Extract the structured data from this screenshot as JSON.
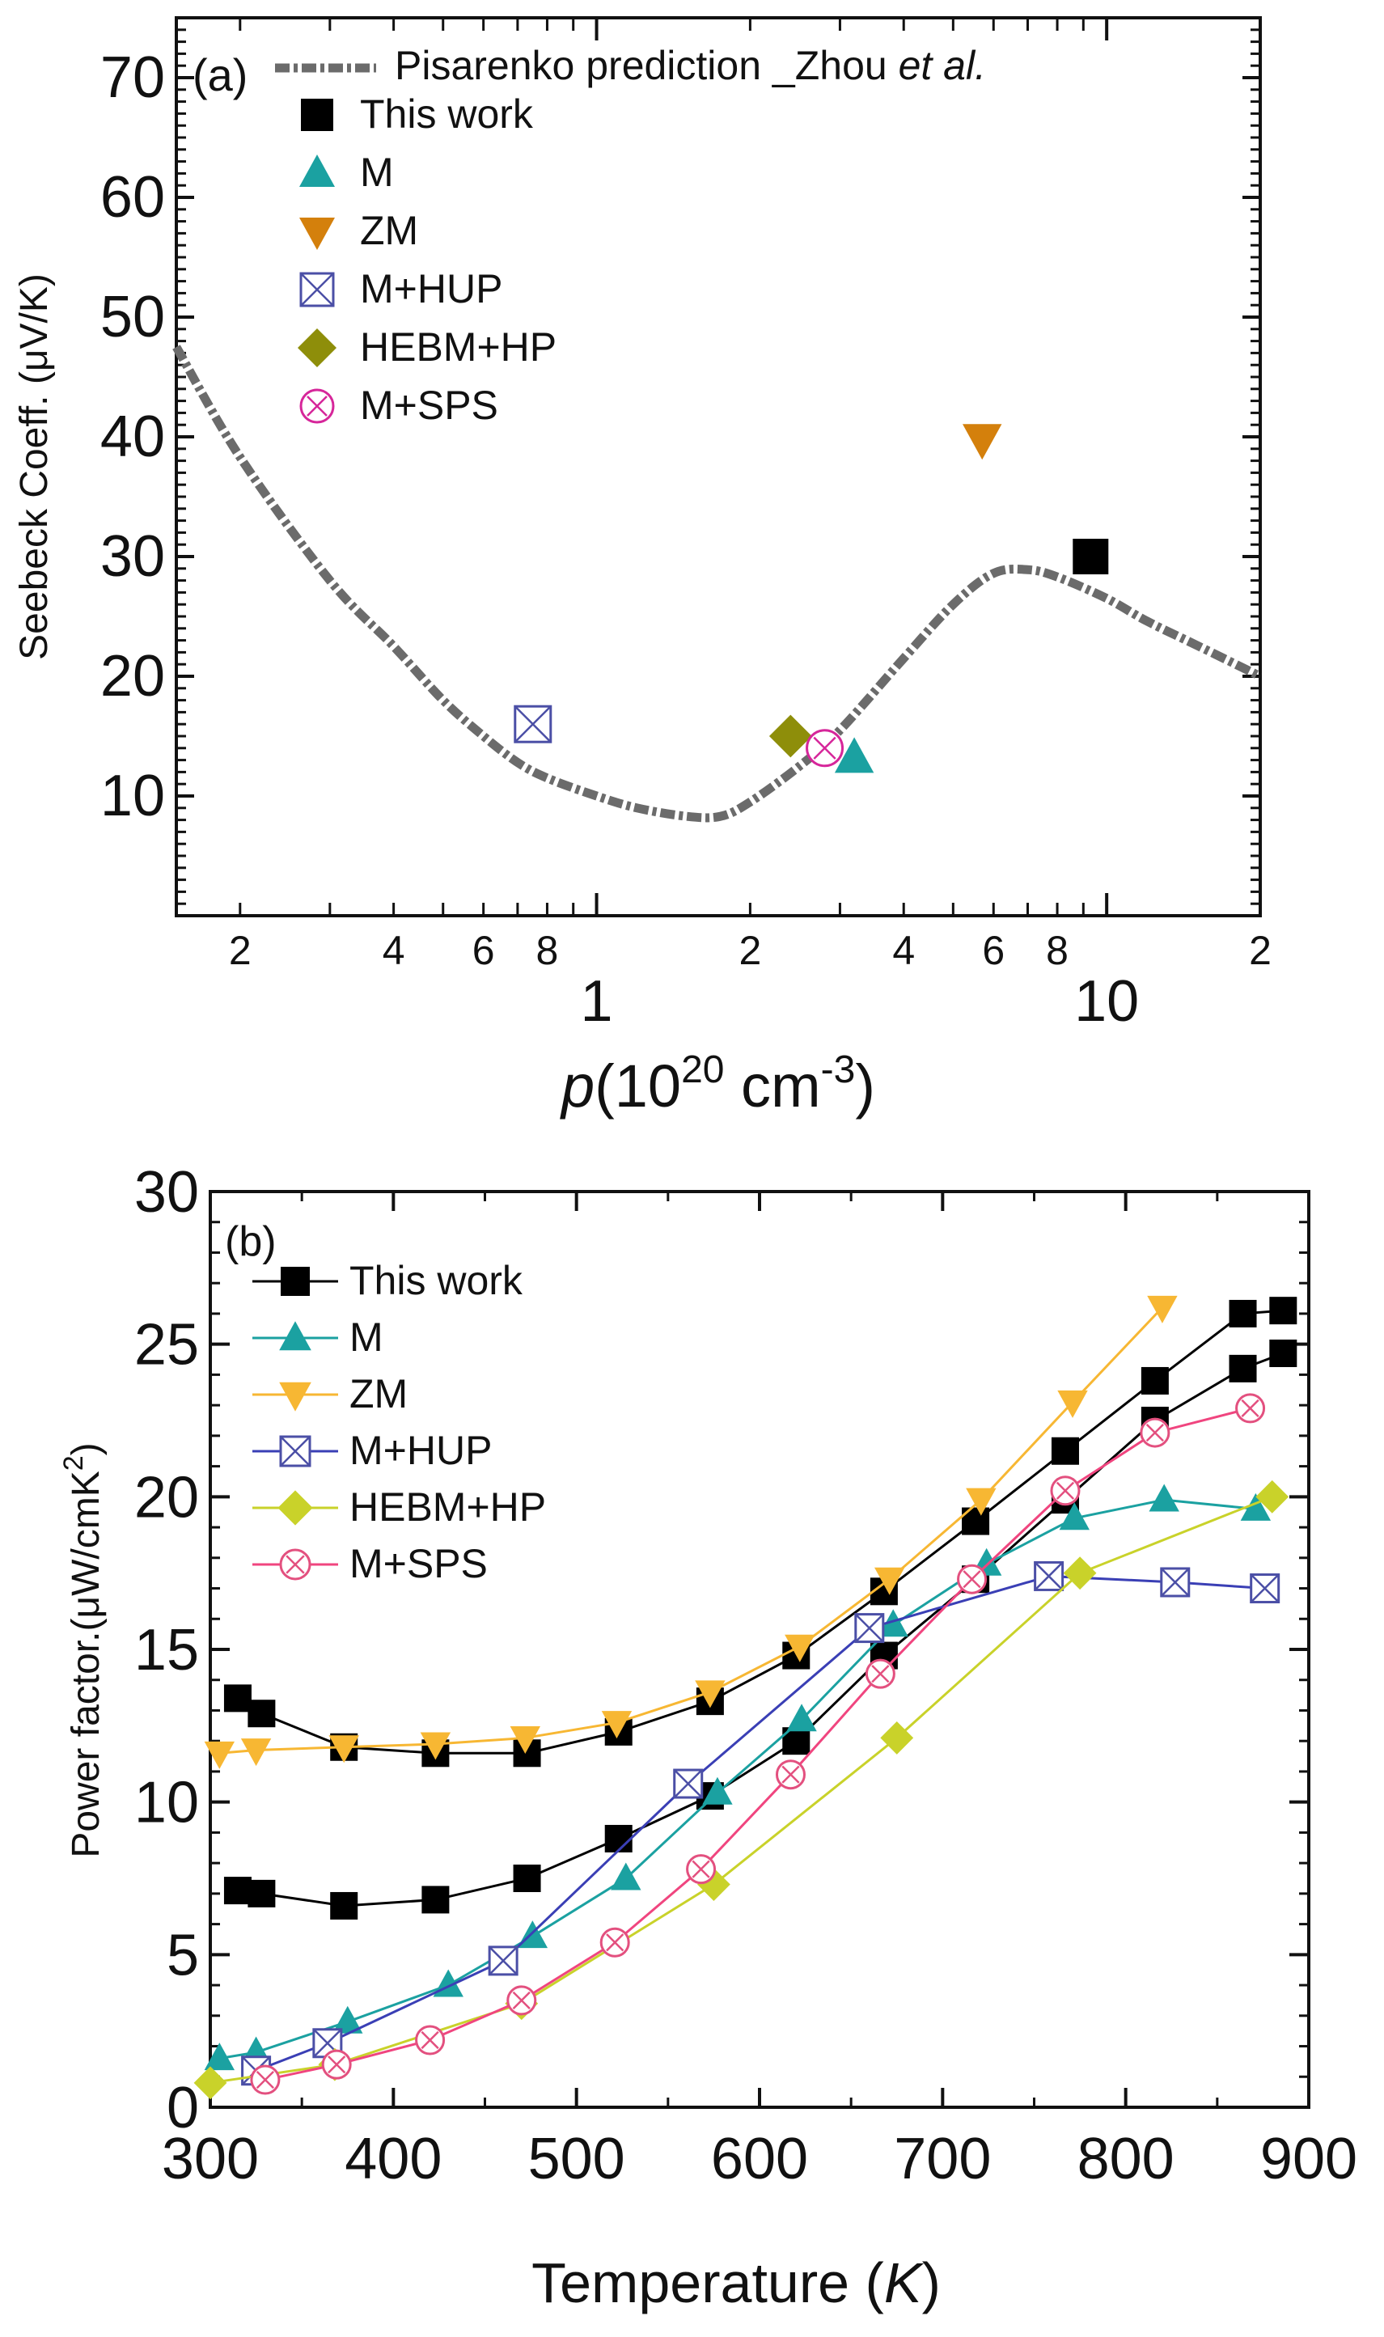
{
  "chart_data": [
    {
      "type": "scatter",
      "panel_label": "(a)",
      "xscale": "log",
      "xlim": [
        0.15,
        20
      ],
      "ylim": [
        0,
        75
      ],
      "xlabel": {
        "italic": "p",
        "base": "(10",
        "sup": "20",
        "unit": " cm",
        "unit_sup": "-3",
        "close": ")"
      },
      "ylabel": "Seebeck Coeff. (μV/K)",
      "yticks": [
        10,
        20,
        30,
        40,
        50,
        60,
        70
      ],
      "xmajor": [
        {
          "v": 1,
          "label": "1"
        },
        {
          "v": 10,
          "label": "10"
        }
      ],
      "xminor": [
        {
          "v": 0.2,
          "label": "2"
        },
        {
          "v": 0.4,
          "label": "4"
        },
        {
          "v": 0.6,
          "label": "6"
        },
        {
          "v": 0.8,
          "label": "8"
        },
        {
          "v": 2,
          "label": "2"
        },
        {
          "v": 4,
          "label": "4"
        },
        {
          "v": 6,
          "label": "6"
        },
        {
          "v": 8,
          "label": "8"
        },
        {
          "v": 20,
          "label": "2"
        }
      ],
      "curve": {
        "name": "Pisarenko prediction _Zhou ",
        "name_italic": "et al.",
        "x": [
          0.15,
          0.2,
          0.3,
          0.4,
          0.5,
          0.6,
          0.7,
          0.8,
          1.0,
          1.2,
          1.5,
          1.75,
          2.0,
          2.5,
          3.0,
          4.0,
          5.0,
          6.0,
          7.0,
          8.0,
          10,
          12,
          15,
          20
        ],
        "y": [
          47.5,
          38.3,
          28.0,
          22.5,
          18.0,
          15.0,
          12.8,
          11.5,
          10.0,
          9.0,
          8.3,
          8.3,
          9.5,
          12.5,
          15.5,
          21.5,
          26.0,
          28.6,
          28.9,
          28.3,
          26.5,
          24.6,
          22.6,
          20.0
        ]
      },
      "points": [
        {
          "name": "This work",
          "x": 9.3,
          "y": 30.0,
          "marker": "square",
          "color": "#000000"
        },
        {
          "name": "M",
          "x": 3.2,
          "y": 13.2,
          "marker": "triangle-up",
          "color": "#1ba1a1"
        },
        {
          "name": "ZM",
          "x": 5.7,
          "y": 39.8,
          "marker": "triangle-down",
          "color": "#d4800c"
        },
        {
          "name": "M+HUP",
          "x": 0.75,
          "y": 16.0,
          "marker": "square-x",
          "color": "#4b4fa6"
        },
        {
          "name": "HEBM+HP",
          "x": 2.4,
          "y": 15.0,
          "marker": "diamond",
          "color": "#8e8e0a"
        },
        {
          "name": "M+SPS",
          "x": 2.8,
          "y": 14.0,
          "marker": "circle-x",
          "color": "#d6269a"
        }
      ]
    },
    {
      "type": "line",
      "panel_label": "(b)",
      "xlim": [
        300,
        900
      ],
      "ylim": [
        0,
        30
      ],
      "xlabel": {
        "base": "Temperature (",
        "italic": "K",
        "close": ")"
      },
      "ylabel": {
        "base": "Power factor.(μW/cmK",
        "sup": "2",
        "close": ")"
      },
      "xticks": [
        300,
        400,
        500,
        600,
        700,
        800,
        900
      ],
      "yticks": [
        0,
        5,
        10,
        15,
        20,
        25,
        30
      ],
      "series": [
        {
          "name": "This work",
          "marker": "square",
          "color": "#000000",
          "line": "#000000",
          "legend": true,
          "x": [
            315,
            328,
            373,
            423,
            473,
            523,
            573,
            620,
            668,
            718,
            767,
            816,
            864,
            886
          ],
          "y": [
            13.4,
            12.9,
            11.8,
            11.6,
            11.6,
            12.3,
            13.3,
            14.8,
            16.9,
            19.2,
            21.5,
            23.8,
            26.0,
            26.1
          ]
        },
        {
          "name": "This work (2)",
          "marker": "square",
          "color": "#000000",
          "line": "#000000",
          "legend": false,
          "x": [
            315,
            328,
            373,
            423,
            473,
            523,
            573,
            620,
            668,
            718,
            767,
            816,
            864,
            886
          ],
          "y": [
            7.1,
            7.0,
            6.6,
            6.8,
            7.5,
            8.8,
            10.2,
            12.0,
            14.8,
            17.3,
            19.9,
            22.5,
            24.2,
            24.7
          ]
        },
        {
          "name": "M",
          "marker": "triangle-up",
          "color": "#1ba1a1",
          "line": "#1ba1a1",
          "legend": true,
          "x": [
            305,
            325,
            375,
            430,
            476,
            527,
            577,
            623,
            673,
            724,
            772,
            821,
            871
          ],
          "y": [
            1.6,
            1.8,
            2.8,
            4.0,
            5.6,
            7.5,
            10.3,
            12.7,
            15.8,
            17.8,
            19.3,
            19.9,
            19.6
          ]
        },
        {
          "name": "ZM",
          "marker": "triangle-down",
          "color": "#f7b733",
          "line": "#f7b733",
          "legend": true,
          "x": [
            305,
            325,
            373,
            423,
            472,
            522,
            573,
            622,
            671,
            721,
            771,
            820
          ],
          "y": [
            11.6,
            11.7,
            11.8,
            11.9,
            12.1,
            12.6,
            13.6,
            15.1,
            17.3,
            19.9,
            23.1,
            26.2
          ]
        },
        {
          "name": "M+HUP",
          "marker": "square-x",
          "color": "#4b4fa6",
          "line": "#3a3fb5",
          "legend": true,
          "x": [
            325,
            364,
            460,
            561,
            660,
            758,
            827,
            876
          ],
          "y": [
            1.2,
            2.1,
            4.8,
            10.6,
            15.7,
            17.4,
            17.2,
            17.0
          ]
        },
        {
          "name": "HEBM+HP",
          "marker": "diamond",
          "color": "#c9d22a",
          "line": "#c9d22a",
          "legend": true,
          "x": [
            300,
            368,
            470,
            575,
            675,
            775,
            880
          ],
          "y": [
            0.8,
            1.4,
            3.4,
            7.3,
            12.1,
            17.5,
            20.0
          ]
        },
        {
          "name": "M+SPS",
          "marker": "circle-x",
          "color": "#e3507f",
          "line": "#f0457f",
          "legend": true,
          "x": [
            330,
            369,
            420,
            470,
            521,
            568,
            617,
            666,
            716,
            767,
            816,
            868
          ],
          "y": [
            0.9,
            1.4,
            2.2,
            3.5,
            5.4,
            7.8,
            10.9,
            14.2,
            17.3,
            20.2,
            22.1,
            22.9
          ]
        }
      ]
    }
  ]
}
